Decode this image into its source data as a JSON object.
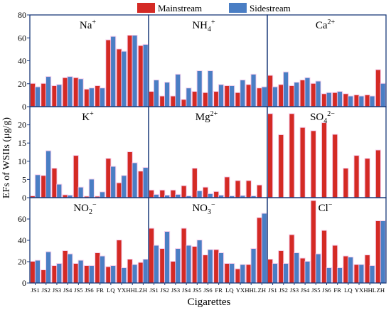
{
  "colors": {
    "mainstream": "#d42a25",
    "sidestream": "#4a7ec4",
    "highlight": "#f4c6ea",
    "axis": "#1a3a7a"
  },
  "chart_data": {
    "type": "bar",
    "ylabel": "EFs of WSIIs (μg/g)",
    "xlabel": "Cigarettes",
    "categories": [
      "JS1",
      "JS2",
      "JS3",
      "JS4",
      "JS5",
      "JS6",
      "FR",
      "LQ",
      "YX",
      "HHL",
      "ZH"
    ],
    "legend": {
      "position": "top-center",
      "entries": [
        "Mainstream",
        "Sidestream"
      ]
    },
    "grid": false,
    "rows": [
      {
        "ylim": [
          0,
          80
        ],
        "yticks": [
          0,
          20,
          40,
          60,
          80
        ]
      },
      {
        "ylim": [
          0,
          25
        ],
        "yticks": [
          0,
          5,
          10,
          15,
          20,
          25
        ]
      },
      {
        "ylim": [
          0,
          80
        ],
        "yticks": [
          0,
          20,
          40,
          60,
          80
        ]
      }
    ],
    "panels": [
      {
        "title_main": "Na",
        "title_sup": "+",
        "row": 0,
        "col": 0,
        "series": [
          {
            "name": "Mainstream",
            "values": [
              20,
              20,
              18,
              25,
              25,
              15,
              18,
              58,
              50,
              62,
              53
            ]
          },
          {
            "name": "Sidestream",
            "values": [
              17,
              26,
              19,
              26,
              24,
              16,
              16,
              61,
              48,
              62,
              54
            ]
          }
        ]
      },
      {
        "title_main": "NH",
        "title_sub": "4",
        "title_sup": "+",
        "row": 0,
        "col": 1,
        "series": [
          {
            "name": "Mainstream",
            "values": [
              13,
              9,
              9,
              6,
              13,
              12,
              13,
              18,
              12,
              19,
              16
            ]
          },
          {
            "name": "Sidestream",
            "values": [
              23,
              21,
              28,
              16,
              31,
              31,
              19,
              18,
              23,
              28,
              17
            ]
          }
        ]
      },
      {
        "title_main": "Ca",
        "title_sup": "2+",
        "row": 0,
        "col": 2,
        "series": [
          {
            "name": "Mainstream",
            "values": [
              27,
              19,
              18,
              23,
              20,
              11,
              12,
              11,
              10,
              10,
              32
            ]
          },
          {
            "name": "Sidestream",
            "values": [
              17,
              30,
              21,
              25,
              22,
              12,
              13,
              9,
              9,
              9,
              20
            ]
          }
        ]
      },
      {
        "title_main": "K",
        "title_sup": "+",
        "row": 1,
        "col": 0,
        "series": [
          {
            "name": "Mainstream",
            "values": [
              0.4,
              6,
              8,
              0.7,
              11.5,
              0.3,
              0.3,
              10.7,
              4,
              12.5,
              7.2
            ]
          },
          {
            "name": "Sidestream",
            "values": [
              6.2,
              12.8,
              3.6,
              0.6,
              2.8,
              5,
              1.5,
              8.5,
              6,
              9.5,
              8.2
            ]
          }
        ]
      },
      {
        "title_main": "Mg",
        "title_sup": "2+",
        "row": 1,
        "col": 1,
        "series": [
          {
            "name": "Mainstream",
            "values": [
              2,
              2,
              2,
              3.2,
              8,
              2.8,
              1.6,
              5.6,
              4.6,
              4.6,
              3.4
            ]
          },
          {
            "name": "Sidestream",
            "values": [
              0.8,
              0.6,
              0.8,
              0.4,
              1.8,
              1,
              0.6,
              0.4,
              0.5,
              0.4,
              0
            ]
          }
        ]
      },
      {
        "title_main": "SO",
        "title_sub": "4",
        "title_sup": "2−",
        "row": 1,
        "col": 2,
        "series": [
          {
            "name": "Mainstream",
            "values": [
              23,
              17.2,
              23,
              19.2,
              18.3,
              20.5,
              17.3,
              8,
              11.5,
              10.7,
              13
            ]
          },
          {
            "name": "Sidestream",
            "values": [
              0,
              0,
              0,
              0,
              0,
              0,
              0,
              0,
              0,
              0,
              0
            ]
          }
        ]
      },
      {
        "title_main": "NO",
        "title_sub": "2",
        "title_sup": "−",
        "row": 2,
        "col": 0,
        "series": [
          {
            "name": "Mainstream",
            "values": [
              20,
              12,
              16,
              30,
              18,
              16,
              28,
              15,
              40,
              22,
              19
            ]
          },
          {
            "name": "Sidestream",
            "values": [
              21,
              29,
              18,
              27,
              21,
              16,
              25,
              16,
              14,
              17,
              22
            ]
          }
        ]
      },
      {
        "title_main": "NO",
        "title_sub": "3",
        "title_sup": "−",
        "row": 2,
        "col": 1,
        "series": [
          {
            "name": "Mainstream",
            "values": [
              51,
              32,
              20,
              51,
              34,
              26,
              31,
              18,
              13,
              17,
              61
            ]
          },
          {
            "name": "Sidestream",
            "values": [
              35,
              48,
              32,
              35,
              40,
              31,
              28,
              18,
              17,
              32,
              65
            ]
          }
        ]
      },
      {
        "title_main": "Cl",
        "title_sup": "−",
        "row": 2,
        "col": 2,
        "series": [
          {
            "name": "Mainstream",
            "values": [
              22,
              30,
              45,
              23,
              77,
              49,
              35,
              25,
              17,
              26,
              58
            ]
          },
          {
            "name": "Sidestream",
            "values": [
              18,
              18,
              28,
              20,
              27,
              14,
              14,
              24,
              17,
              16,
              58
            ]
          }
        ]
      }
    ]
  }
}
